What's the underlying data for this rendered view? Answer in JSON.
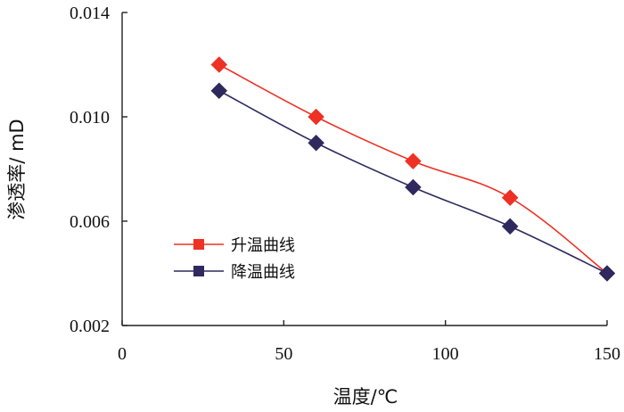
{
  "chart_data": {
    "type": "line",
    "xlabel": "温度/℃",
    "ylabel": "渗透率/ mD",
    "xlim": [
      0,
      150
    ],
    "ylim": [
      0.002,
      0.014
    ],
    "x_ticks": [
      "0",
      "50",
      "100",
      "150"
    ],
    "y_ticks": [
      "0.002",
      "0.006",
      "0.010",
      "0.014"
    ],
    "grid": false,
    "legend_position": "center-left",
    "series": [
      {
        "name": "升温曲线",
        "color": "#ee3124",
        "marker": "diamond",
        "points": [
          {
            "x": 30,
            "y": 0.012
          },
          {
            "x": 60,
            "y": 0.01
          },
          {
            "x": 90,
            "y": 0.0083
          },
          {
            "x": 120,
            "y": 0.0069
          },
          {
            "x": 150,
            "y": 0.004
          }
        ]
      },
      {
        "name": "降温曲线",
        "color": "#2e2a5e",
        "marker": "diamond",
        "points": [
          {
            "x": 30,
            "y": 0.011
          },
          {
            "x": 60,
            "y": 0.009
          },
          {
            "x": 90,
            "y": 0.0073
          },
          {
            "x": 120,
            "y": 0.0058
          },
          {
            "x": 150,
            "y": 0.004
          }
        ]
      }
    ]
  }
}
